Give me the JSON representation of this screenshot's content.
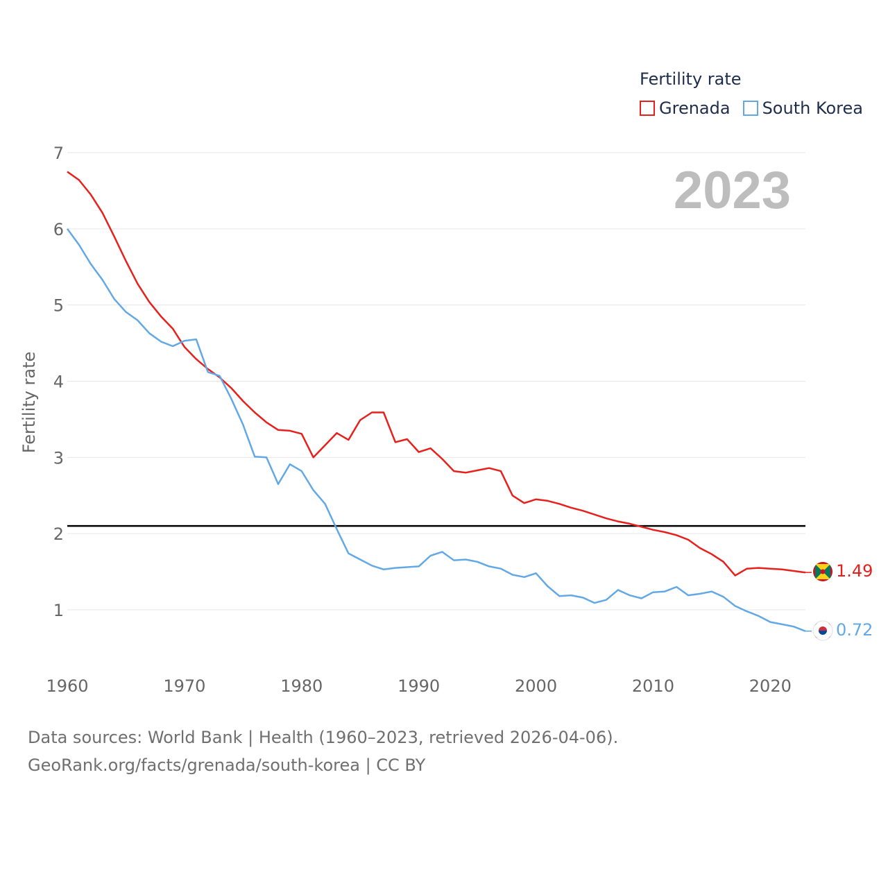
{
  "legend": {
    "title": "Fertility rate"
  },
  "footer": {
    "line1": "Data sources: World Bank | Health (1960–2023, retrieved 2026-04-06).",
    "line2": "GeoRank.org/facts/grenada/south-korea | CC BY"
  },
  "colors": {
    "grenada": "#e8201c",
    "south_korea": "#63a8e6",
    "reference": "#000000",
    "grid": "#e6e6e6",
    "axis_text": "#666666",
    "year_watermark": "#bdbdbd"
  },
  "chart_data": {
    "type": "line",
    "title": "Fertility rate",
    "year_label": "2023",
    "xlabel": "",
    "ylabel": "Fertility rate",
    "xlim": [
      1960,
      2023
    ],
    "ylim": [
      0.5,
      7
    ],
    "xticks": [
      1960,
      1970,
      1980,
      1990,
      2000,
      2010,
      2020
    ],
    "yticks": [
      1,
      2,
      3,
      4,
      5,
      6,
      7
    ],
    "reference_line": 2.1,
    "x": [
      1960,
      1961,
      1962,
      1963,
      1964,
      1965,
      1966,
      1967,
      1968,
      1969,
      1970,
      1971,
      1972,
      1973,
      1974,
      1975,
      1976,
      1977,
      1978,
      1979,
      1980,
      1981,
      1982,
      1983,
      1984,
      1985,
      1986,
      1987,
      1988,
      1989,
      1990,
      1991,
      1992,
      1993,
      1994,
      1995,
      1996,
      1997,
      1998,
      1999,
      2000,
      2001,
      2002,
      2003,
      2004,
      2005,
      2006,
      2007,
      2008,
      2009,
      2010,
      2011,
      2012,
      2013,
      2014,
      2015,
      2016,
      2017,
      2018,
      2019,
      2020,
      2021,
      2022,
      2023
    ],
    "series": [
      {
        "name": "Grenada",
        "end_label": "1.49",
        "values": [
          6.75,
          6.64,
          6.45,
          6.21,
          5.9,
          5.58,
          5.28,
          5.04,
          4.85,
          4.69,
          4.45,
          4.29,
          4.16,
          4.05,
          3.91,
          3.74,
          3.59,
          3.46,
          3.36,
          3.35,
          3.31,
          3.0,
          3.16,
          3.32,
          3.23,
          3.49,
          3.59,
          3.59,
          3.2,
          3.24,
          3.07,
          3.12,
          2.98,
          2.82,
          2.8,
          2.83,
          2.86,
          2.82,
          2.5,
          2.4,
          2.45,
          2.43,
          2.39,
          2.34,
          2.3,
          2.25,
          2.2,
          2.16,
          2.13,
          2.09,
          2.05,
          2.02,
          1.98,
          1.92,
          1.81,
          1.73,
          1.63,
          1.45,
          1.54,
          1.55,
          1.54,
          1.53,
          1.51,
          1.49
        ]
      },
      {
        "name": "South Korea",
        "end_label": "0.72",
        "values": [
          6.0,
          5.79,
          5.54,
          5.33,
          5.08,
          4.91,
          4.8,
          4.63,
          4.52,
          4.46,
          4.53,
          4.55,
          4.12,
          4.07,
          3.77,
          3.43,
          3.01,
          3.0,
          2.65,
          2.91,
          2.82,
          2.57,
          2.39,
          2.06,
          1.74,
          1.66,
          1.58,
          1.53,
          1.55,
          1.56,
          1.57,
          1.71,
          1.76,
          1.65,
          1.66,
          1.63,
          1.57,
          1.54,
          1.46,
          1.43,
          1.48,
          1.31,
          1.18,
          1.19,
          1.16,
          1.09,
          1.13,
          1.26,
          1.19,
          1.15,
          1.23,
          1.24,
          1.3,
          1.19,
          1.21,
          1.24,
          1.17,
          1.05,
          0.98,
          0.92,
          0.84,
          0.81,
          0.78,
          0.72
        ]
      }
    ]
  }
}
